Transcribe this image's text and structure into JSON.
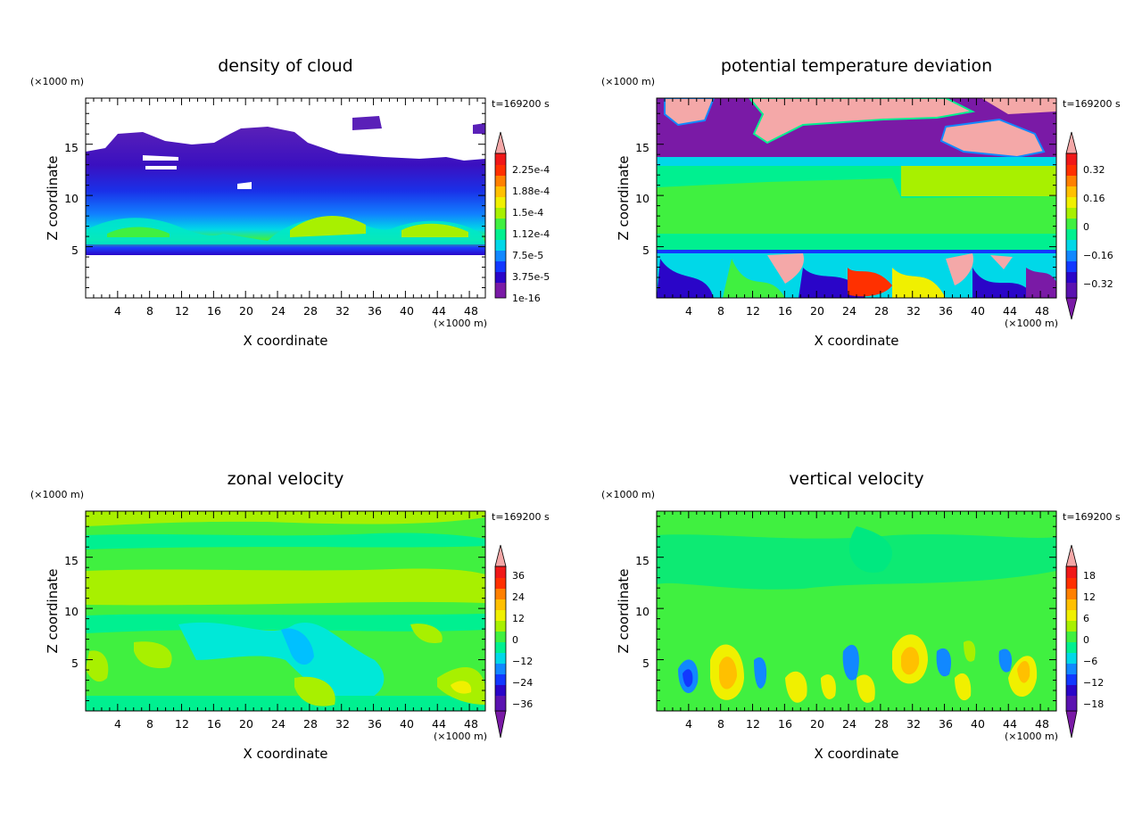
{
  "chart_data": [
    {
      "type": "heatmap",
      "title": "density of cloud",
      "xlabel": "X coordinate",
      "ylabel": "Z coordinate",
      "x_unit": "(×1000 m)",
      "y_unit": "(×1000 m)",
      "time_label": "t=169200 s",
      "xlim": [
        0,
        50
      ],
      "ylim": [
        0,
        19.5
      ],
      "x_ticks": [
        4,
        8,
        12,
        16,
        20,
        24,
        28,
        32,
        36,
        40,
        44,
        48
      ],
      "y_ticks": [
        5,
        10,
        15
      ],
      "colorbar_labels": [
        "2.25e-4",
        "1.88e-4",
        "1.5e-4",
        "1.12e-4",
        "7.5e-5",
        "3.75e-5",
        "1e-16"
      ]
    },
    {
      "type": "heatmap",
      "title": "potential temperature deviation",
      "xlabel": "X coordinate",
      "ylabel": "Z coordinate",
      "x_unit": "(×1000 m)",
      "y_unit": "(×1000 m)",
      "time_label": "t=169200 s",
      "xlim": [
        0,
        50
      ],
      "ylim": [
        0,
        19.5
      ],
      "x_ticks": [
        4,
        8,
        12,
        16,
        20,
        24,
        28,
        32,
        36,
        40,
        44,
        48
      ],
      "y_ticks": [
        5,
        10,
        15
      ],
      "colorbar_labels": [
        "0.32",
        "0.16",
        "0",
        "−0.16",
        "−0.32"
      ]
    },
    {
      "type": "heatmap",
      "title": "zonal velocity",
      "xlabel": "X coordinate",
      "ylabel": "Z coordinate",
      "x_unit": "(×1000 m)",
      "y_unit": "(×1000 m)",
      "time_label": "t=169200 s",
      "xlim": [
        0,
        50
      ],
      "ylim": [
        0,
        19.5
      ],
      "x_ticks": [
        4,
        8,
        12,
        16,
        20,
        24,
        28,
        32,
        36,
        40,
        44,
        48
      ],
      "y_ticks": [
        5,
        10,
        15
      ],
      "colorbar_labels": [
        "36",
        "24",
        "12",
        "0",
        "−12",
        "−24",
        "−36"
      ]
    },
    {
      "type": "heatmap",
      "title": "vertical velocity",
      "xlabel": "X coordinate",
      "ylabel": "Z coordinate",
      "x_unit": "(×1000 m)",
      "y_unit": "(×1000 m)",
      "time_label": "t=169200 s",
      "xlim": [
        0,
        50
      ],
      "ylim": [
        0,
        19.5
      ],
      "x_ticks": [
        4,
        8,
        12,
        16,
        20,
        24,
        28,
        32,
        36,
        40,
        44,
        48
      ],
      "y_ticks": [
        5,
        10,
        15
      ],
      "colorbar_labels": [
        "18",
        "12",
        "6",
        "0",
        "−6",
        "−12",
        "−18"
      ]
    }
  ],
  "colors": {
    "palette": [
      "#7a1aa6",
      "#2a05c8",
      "#1238ff",
      "#1188ff",
      "#00d8e8",
      "#00f090",
      "#40f040",
      "#a8f000",
      "#f0f000",
      "#ffc000",
      "#ff8000",
      "#ff3000",
      "#f01818",
      "#f4a8a8"
    ]
  }
}
